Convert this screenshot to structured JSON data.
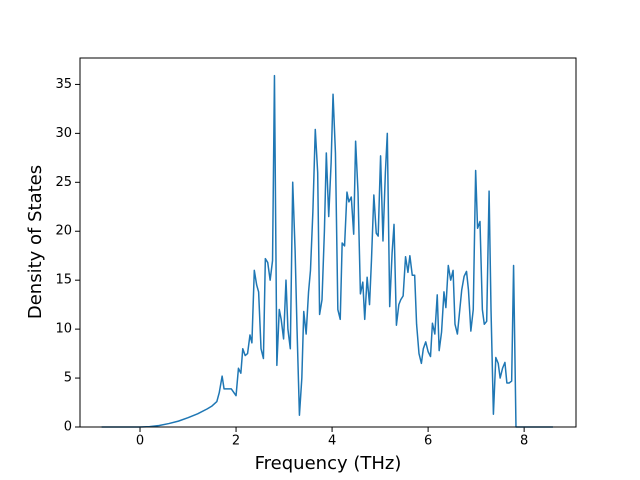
{
  "chart_data": {
    "type": "line",
    "xlabel": "Frequency (THz)",
    "ylabel": "Density of States",
    "color": "#1f77b4",
    "x": [
      -0.8,
      0,
      0.2,
      0.4,
      0.6,
      0.8,
      1.0,
      1.2,
      1.4,
      1.5,
      1.6,
      1.65,
      1.71,
      1.75,
      1.9,
      2.0,
      2.05,
      2.1,
      2.14,
      2.19,
      2.24,
      2.29,
      2.33,
      2.38,
      2.43,
      2.47,
      2.52,
      2.57,
      2.61,
      2.66,
      2.71,
      2.76,
      2.8,
      2.85,
      2.9,
      2.94,
      2.99,
      3.04,
      3.08,
      3.13,
      3.18,
      3.23,
      3.27,
      3.32,
      3.37,
      3.41,
      3.46,
      3.51,
      3.55,
      3.6,
      3.65,
      3.7,
      3.74,
      3.79,
      3.84,
      3.88,
      3.93,
      3.98,
      4.02,
      4.07,
      4.12,
      4.17,
      4.21,
      4.26,
      4.31,
      4.35,
      4.4,
      4.45,
      4.49,
      4.54,
      4.59,
      4.64,
      4.68,
      4.73,
      4.78,
      4.82,
      4.87,
      4.92,
      4.96,
      5.01,
      5.06,
      5.11,
      5.15,
      5.2,
      5.25,
      5.29,
      5.34,
      5.39,
      5.43,
      5.48,
      5.53,
      5.58,
      5.62,
      5.67,
      5.72,
      5.76,
      5.81,
      5.86,
      5.9,
      5.95,
      6.0,
      6.05,
      6.09,
      6.14,
      6.19,
      6.23,
      6.28,
      6.33,
      6.37,
      6.42,
      6.47,
      6.52,
      6.56,
      6.61,
      6.66,
      6.7,
      6.75,
      6.8,
      6.84,
      6.89,
      6.94,
      6.99,
      7.03,
      7.08,
      7.13,
      7.17,
      7.22,
      7.27,
      7.31,
      7.36,
      7.41,
      7.46,
      7.5,
      7.55,
      7.6,
      7.64,
      7.69,
      7.74,
      7.78,
      7.83,
      8.6
    ],
    "values": [
      0,
      0,
      0.04,
      0.15,
      0.35,
      0.6,
      0.95,
      1.35,
      1.85,
      2.15,
      2.6,
      3.5,
      5.2,
      3.9,
      3.9,
      3.2,
      6,
      5.5,
      8,
      7.3,
      7.5,
      9.4,
      8.6,
      16,
      14.5,
      13.8,
      8,
      7,
      17.2,
      16.8,
      15,
      17,
      35.9,
      6.3,
      12,
      11,
      9,
      15,
      10,
      8,
      25,
      18,
      10,
      1.2,
      5,
      11.8,
      9.5,
      13.8,
      16,
      22,
      30.4,
      26,
      11.5,
      13,
      20,
      28,
      21.5,
      27,
      34,
      28,
      12,
      11,
      18.8,
      18.5,
      24,
      23,
      23.5,
      19.7,
      29.2,
      24,
      13.6,
      14.8,
      11,
      15.3,
      12.5,
      17,
      23.7,
      19.8,
      19.5,
      27.7,
      19,
      26,
      30,
      12.3,
      17.8,
      20.7,
      10.4,
      12.5,
      13,
      13.4,
      17.4,
      15.8,
      17.5,
      15.5,
      15.5,
      10.5,
      7.5,
      6.5,
      8,
      8.7,
      7.7,
      7.2,
      10.6,
      9.5,
      13.5,
      7.8,
      9.7,
      13.8,
      12.2,
      16.5,
      15,
      16,
      10.5,
      9.5,
      12,
      14,
      15.4,
      15.9,
      14,
      9.8,
      12,
      26.2,
      20.3,
      21,
      12,
      10.5,
      10.8,
      24.1,
      12,
      1.3,
      7.1,
      6.5,
      5,
      6,
      6.6,
      4.5,
      4.5,
      4.7,
      16.5,
      0,
      0
    ],
    "xlim": [
      -1.25,
      9.08
    ],
    "ylim": [
      0,
      37.7
    ],
    "xticks": [
      0,
      2,
      4,
      6,
      8
    ],
    "yticks": [
      0,
      5,
      10,
      15,
      20,
      25,
      30,
      35
    ],
    "grid": false
  }
}
